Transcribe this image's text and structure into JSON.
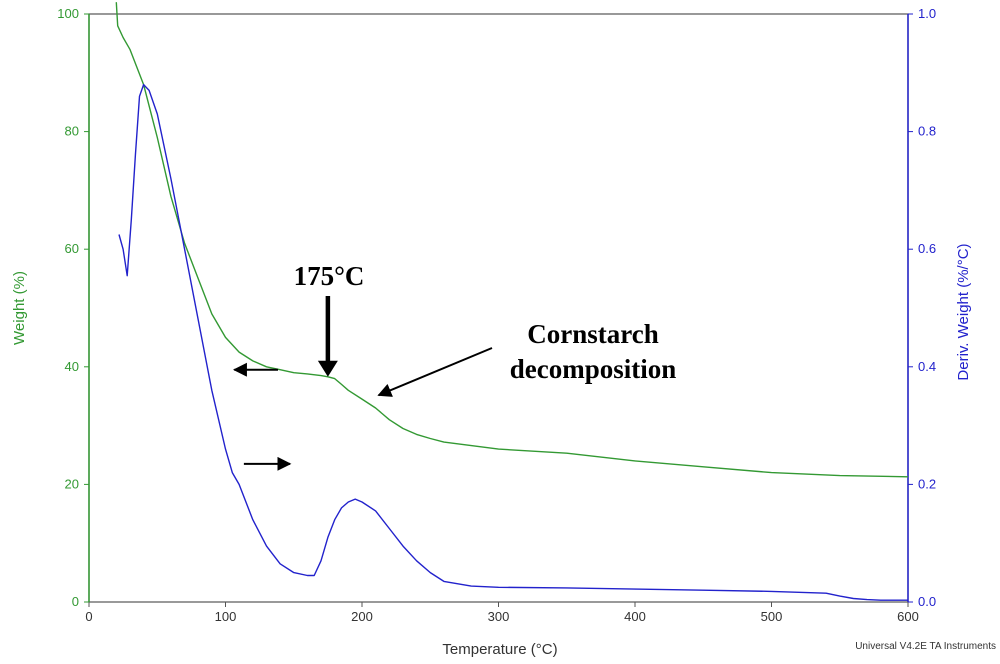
{
  "chart_data": {
    "type": "line",
    "title": "",
    "xlabel": "Temperature (°C)",
    "ylabel_left": "Weight (%)",
    "ylabel_right": "Deriv. Weight (%/°C)",
    "xlim": [
      0,
      600
    ],
    "ylim_left": [
      0,
      100
    ],
    "ylim_right": [
      0.0,
      1.0
    ],
    "x_ticks": [
      "0",
      "100",
      "200",
      "300",
      "400",
      "500",
      "600"
    ],
    "y_left_ticks": [
      "0",
      "20",
      "40",
      "60",
      "80",
      "100"
    ],
    "y_right_ticks": [
      "0.0",
      "0.2",
      "0.4",
      "0.6",
      "0.8",
      "1.0"
    ],
    "grid": false,
    "colors": {
      "weight": "#339933",
      "deriv": "#2222cc",
      "frame": "#555555",
      "arrow": "#000000"
    },
    "series": [
      {
        "axis": "left",
        "color": "#339933",
        "x": [
          20,
          20.5,
          21,
          25,
          30,
          40,
          50,
          60,
          70,
          80,
          90,
          100,
          110,
          120,
          130,
          140,
          150,
          160,
          170,
          175,
          180,
          185,
          190,
          200,
          210,
          220,
          230,
          240,
          250,
          260,
          280,
          300,
          350,
          400,
          450,
          500,
          550,
          600
        ],
        "y": [
          102,
          100,
          98,
          96,
          94,
          88,
          79,
          69,
          61,
          55,
          49,
          45,
          42.5,
          41,
          40,
          39.5,
          39,
          38.8,
          38.5,
          38.3,
          38,
          37,
          36,
          34.5,
          33,
          31,
          29.5,
          28.5,
          27.8,
          27.2,
          26.6,
          26,
          25.3,
          24,
          23,
          22,
          21.5,
          21.3
        ]
      },
      {
        "axis": "right",
        "color": "#2222cc",
        "x": [
          22,
          25,
          28,
          31,
          34,
          37,
          40,
          44,
          50,
          60,
          70,
          80,
          90,
          100,
          105,
          110,
          120,
          130,
          140,
          150,
          160,
          165,
          170,
          175,
          180,
          185,
          190,
          195,
          200,
          210,
          220,
          230,
          240,
          250,
          260,
          280,
          300,
          350,
          400,
          450,
          500,
          540,
          550,
          560,
          570,
          580,
          590,
          600
        ],
        "y": [
          0.625,
          0.6,
          0.555,
          0.65,
          0.76,
          0.86,
          0.88,
          0.87,
          0.83,
          0.72,
          0.6,
          0.48,
          0.36,
          0.26,
          0.22,
          0.2,
          0.14,
          0.095,
          0.065,
          0.05,
          0.045,
          0.045,
          0.07,
          0.11,
          0.14,
          0.16,
          0.17,
          0.175,
          0.17,
          0.155,
          0.125,
          0.095,
          0.07,
          0.05,
          0.035,
          0.027,
          0.025,
          0.024,
          0.022,
          0.02,
          0.018,
          0.015,
          0.01,
          0.006,
          0.004,
          0.003,
          0.003,
          0.003
        ]
      }
    ],
    "annotations": {
      "peak_label": "175°C",
      "decomp_line1": "Cornstarch",
      "decomp_line2": "decomposition",
      "peak_arrow_x": 175,
      "peak_arrow_y": 38.3,
      "decomp_arrow_x": 210,
      "decomp_arrow_y": 35,
      "weight_axis_arrow_x": 105,
      "weight_axis_arrow_y": 39.5,
      "deriv_axis_arrow_x": 112,
      "deriv_axis_arrow_y": 0.235
    },
    "footer": "Universal V4.2E TA Instruments"
  }
}
